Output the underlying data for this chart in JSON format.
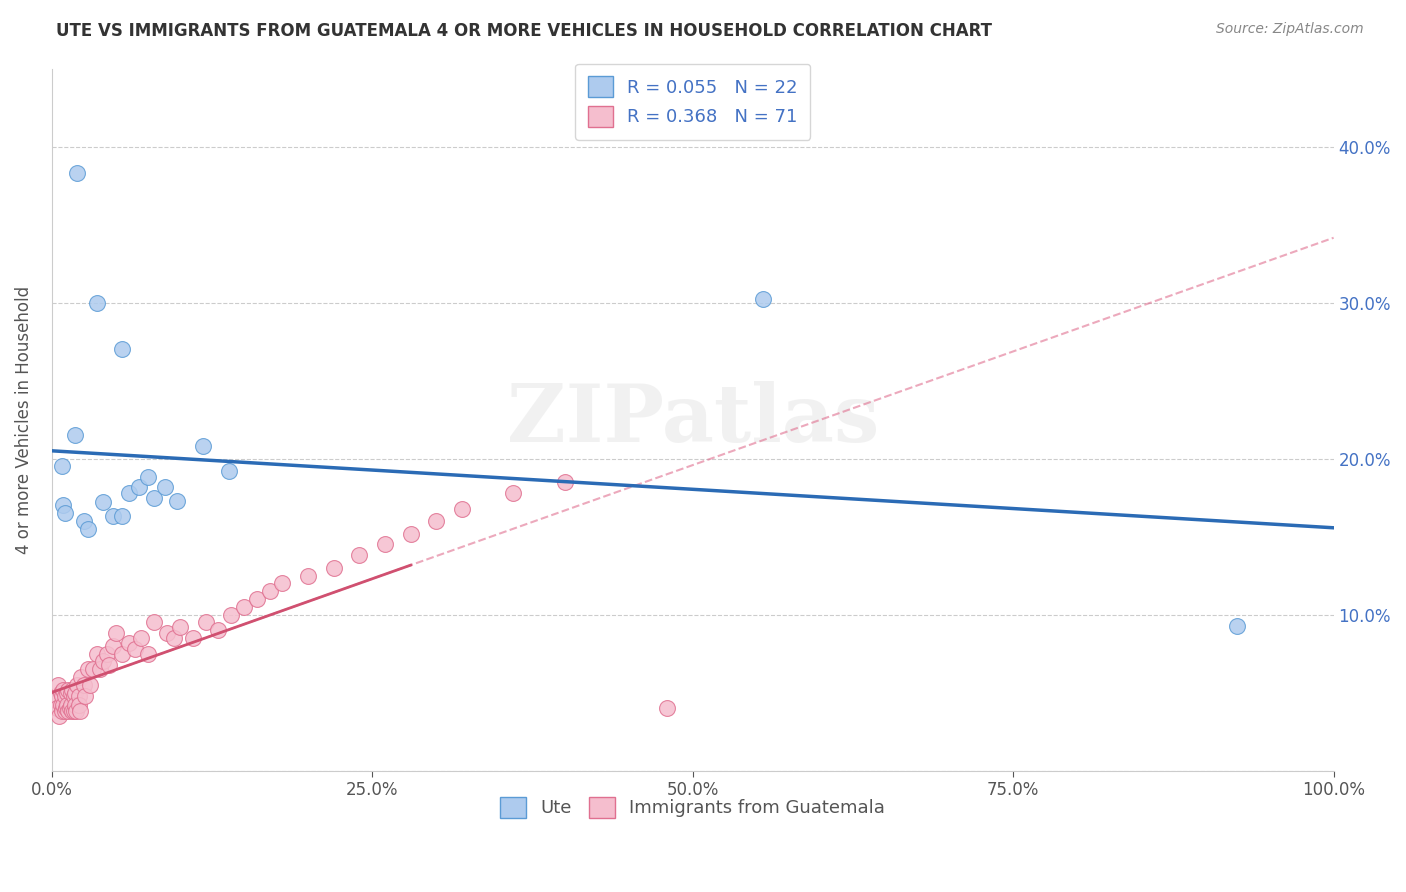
{
  "title": "UTE VS IMMIGRANTS FROM GUATEMALA 4 OR MORE VEHICLES IN HOUSEHOLD CORRELATION CHART",
  "source": "Source: ZipAtlas.com",
  "ylabel": "4 or more Vehicles in Household",
  "xlim": [
    0,
    1.0
  ],
  "ylim": [
    0,
    0.45
  ],
  "xticks": [
    0.0,
    0.25,
    0.5,
    0.75,
    1.0
  ],
  "xticklabels": [
    "0.0%",
    "25.0%",
    "50.0%",
    "75.0%",
    "100.0%"
  ],
  "yticks": [
    0.0,
    0.1,
    0.2,
    0.3,
    0.4
  ],
  "yticklabels_left": [
    "",
    "",
    "",
    "",
    ""
  ],
  "yticklabels_right": [
    "",
    "10.0%",
    "20.0%",
    "30.0%",
    "40.0%"
  ],
  "legend_labels": [
    "Ute",
    "Immigrants from Guatemala"
  ],
  "ute_R": "0.055",
  "ute_N": "22",
  "guat_R": "0.368",
  "guat_N": "71",
  "ute_color": "#aecbee",
  "ute_edge_color": "#5b9bd5",
  "ute_line_color": "#2b6bb5",
  "guat_color": "#f5bece",
  "guat_edge_color": "#e07090",
  "guat_line_color": "#d05070",
  "watermark": "ZIPatlas",
  "background_color": "#ffffff",
  "ute_x": [
    0.02,
    0.035,
    0.055,
    0.018,
    0.008,
    0.009,
    0.01,
    0.025,
    0.028,
    0.04,
    0.048,
    0.055,
    0.06,
    0.068,
    0.075,
    0.08,
    0.088,
    0.098,
    0.118,
    0.138,
    0.555,
    0.925
  ],
  "ute_y": [
    0.383,
    0.3,
    0.27,
    0.215,
    0.195,
    0.17,
    0.165,
    0.16,
    0.155,
    0.172,
    0.163,
    0.163,
    0.178,
    0.182,
    0.188,
    0.175,
    0.182,
    0.173,
    0.208,
    0.192,
    0.302,
    0.093
  ],
  "guat_x": [
    0.003,
    0.004,
    0.005,
    0.006,
    0.007,
    0.007,
    0.008,
    0.008,
    0.009,
    0.009,
    0.01,
    0.01,
    0.011,
    0.012,
    0.012,
    0.013,
    0.013,
    0.014,
    0.015,
    0.015,
    0.016,
    0.016,
    0.017,
    0.017,
    0.018,
    0.018,
    0.019,
    0.02,
    0.021,
    0.021,
    0.022,
    0.023,
    0.025,
    0.026,
    0.028,
    0.03,
    0.032,
    0.035,
    0.038,
    0.04,
    0.043,
    0.045,
    0.048,
    0.05,
    0.055,
    0.06,
    0.065,
    0.07,
    0.075,
    0.08,
    0.09,
    0.095,
    0.1,
    0.11,
    0.12,
    0.13,
    0.14,
    0.15,
    0.16,
    0.17,
    0.18,
    0.2,
    0.22,
    0.24,
    0.26,
    0.28,
    0.3,
    0.32,
    0.36,
    0.4,
    0.48
  ],
  "guat_y": [
    0.045,
    0.04,
    0.055,
    0.035,
    0.042,
    0.05,
    0.038,
    0.048,
    0.042,
    0.052,
    0.038,
    0.048,
    0.04,
    0.05,
    0.042,
    0.038,
    0.052,
    0.04,
    0.05,
    0.042,
    0.038,
    0.052,
    0.048,
    0.038,
    0.05,
    0.042,
    0.038,
    0.055,
    0.048,
    0.042,
    0.038,
    0.06,
    0.055,
    0.048,
    0.065,
    0.055,
    0.065,
    0.075,
    0.065,
    0.07,
    0.075,
    0.068,
    0.08,
    0.088,
    0.075,
    0.082,
    0.078,
    0.085,
    0.075,
    0.095,
    0.088,
    0.085,
    0.092,
    0.085,
    0.095,
    0.09,
    0.1,
    0.105,
    0.11,
    0.115,
    0.12,
    0.125,
    0.13,
    0.138,
    0.145,
    0.152,
    0.16,
    0.168,
    0.178,
    0.185,
    0.04
  ]
}
